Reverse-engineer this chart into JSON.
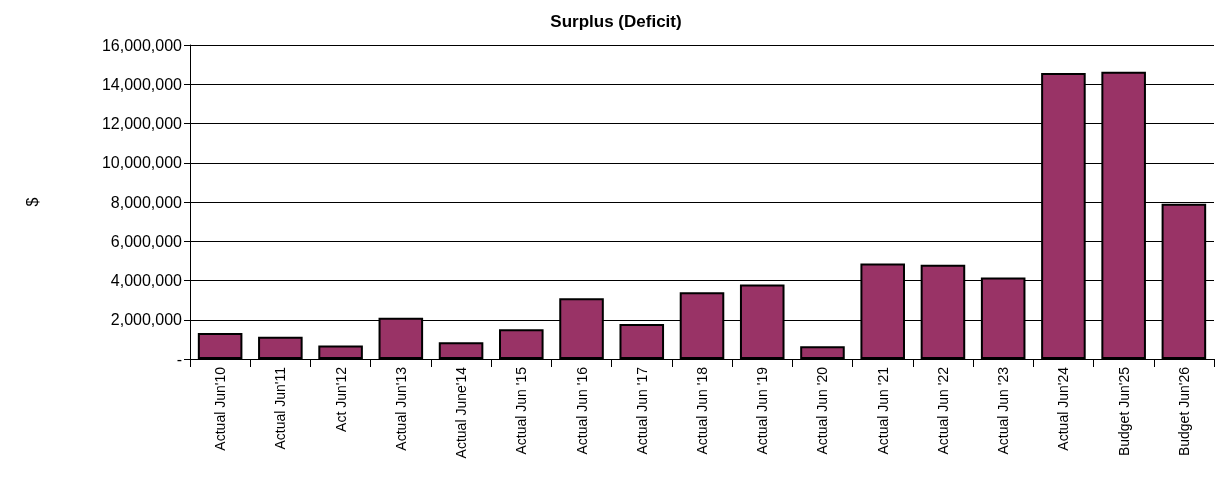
{
  "chart_data": {
    "type": "bar",
    "title": "Surplus (Deficit)",
    "ylabel": "$",
    "categories": [
      "Actual Jun'10",
      "Actual Jun'11",
      "Act Jun'12",
      "Actual Jun'13",
      "Actual June'14",
      "Actual Jun '15",
      "Actual Jun '16",
      "Actual Jun '17",
      "Actual Jun '18",
      "Actual Jun '19",
      "Actual Jun '20",
      "Actual Jun '21",
      "Actual Jun '22",
      "Actual Jun '23",
      "Actual Jun'24",
      "Budget Jun'25",
      "Budget Jun'26"
    ],
    "values": [
      1320000,
      1140000,
      690000,
      2100000,
      850000,
      1520000,
      3090000,
      1780000,
      3400000,
      3790000,
      650000,
      4860000,
      4800000,
      4150000,
      14570000,
      14640000,
      7910000
    ],
    "color": "#993366",
    "ylim": [
      0,
      16000000
    ],
    "yticks": [
      {
        "value": 0,
        "label": "-"
      },
      {
        "value": 2000000,
        "label": "2,000,000"
      },
      {
        "value": 4000000,
        "label": "4,000,000"
      },
      {
        "value": 6000000,
        "label": "6,000,000"
      },
      {
        "value": 8000000,
        "label": "8,000,000"
      },
      {
        "value": 10000000,
        "label": "10,000,000"
      },
      {
        "value": 12000000,
        "label": "12,000,000"
      },
      {
        "value": 14000000,
        "label": "14,000,000"
      },
      {
        "value": 16000000,
        "label": "16,000,000"
      }
    ],
    "grid": "y"
  }
}
